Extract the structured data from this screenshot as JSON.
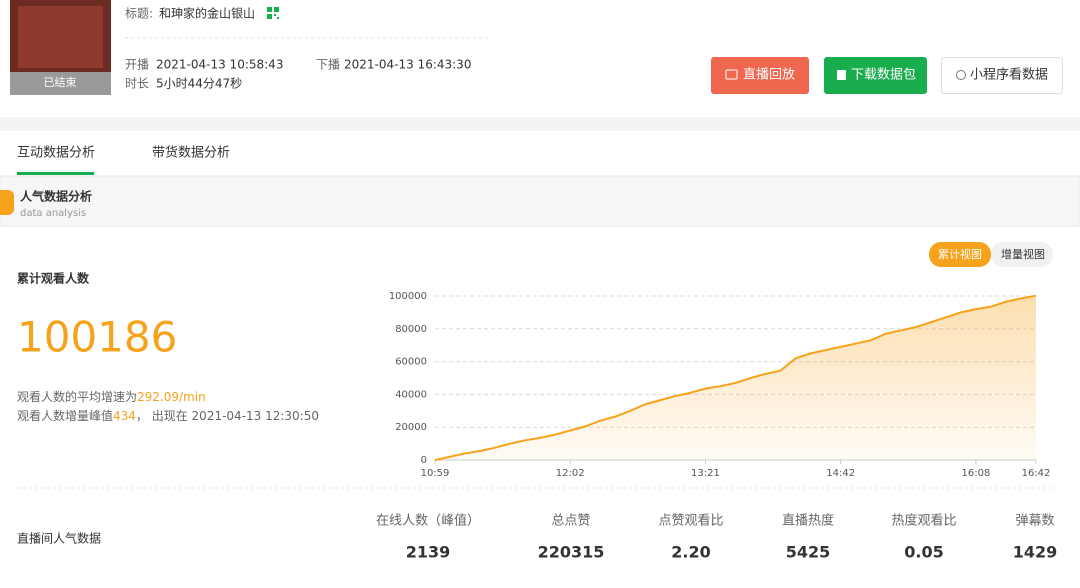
{
  "header": {
    "status": "已结束",
    "title_label": "标题:",
    "title": "和珅家的金山银山",
    "start_label": "开播",
    "start": "2021-04-13 10:58:43",
    "end_label": "下播",
    "end": "2021-04-13 16:43:30",
    "duration_label": "时长",
    "duration": "5小时44分47秒",
    "buttons": [
      "直播回放",
      "下载数据包",
      "小程序看数据"
    ]
  },
  "tabs": [
    "互动数据分析",
    "带货数据分析"
  ],
  "section": {
    "title": "人气数据分析",
    "subtitle": "data analysis"
  },
  "summary": {
    "label": "累计观看人数",
    "total": "100186",
    "speed_text": "观看人数的平均增速为",
    "speed": "292.09/min",
    "peak_text": "观看人数增量峰值",
    "peak": "434",
    "peak_time_text": "， 出现在 2021-04-13 12:30:50"
  },
  "view_toggle": [
    "累计视图",
    "增量视图"
  ],
  "chart_data": {
    "type": "area",
    "categories": [
      "10:59",
      null,
      null,
      null,
      null,
      null,
      null,
      null,
      null,
      "12:02",
      null,
      null,
      null,
      null,
      null,
      null,
      null,
      null,
      "13:21",
      null,
      null,
      null,
      null,
      null,
      null,
      null,
      null,
      "14:42",
      null,
      null,
      null,
      null,
      null,
      null,
      null,
      null,
      "16:08",
      null,
      null,
      null,
      "16:42"
    ],
    "values": [
      0,
      2000,
      4000,
      5500,
      7500,
      10000,
      12000,
      13500,
      15500,
      18000,
      20500,
      24000,
      26500,
      30000,
      34000,
      36500,
      39000,
      41000,
      43500,
      45000,
      47000,
      50000,
      52500,
      54500,
      62000,
      65000,
      67000,
      69000,
      71000,
      73000,
      77000,
      79000,
      81000,
      84000,
      87000,
      90000,
      92000,
      93500,
      96500,
      98500,
      100186
    ],
    "color": "#f7a21b",
    "ylim": [
      0,
      100000
    ],
    "yticks": [
      0,
      20000,
      40000,
      60000,
      80000,
      100000
    ],
    "grid": true
  },
  "stats": {
    "label": "直播间人气数据",
    "columns": [
      {
        "name": "在线人数（峰值）",
        "value": "2139"
      },
      {
        "name": "总点赞",
        "value": "220315"
      },
      {
        "name": "点赞观看比",
        "value": "2.20"
      },
      {
        "name": "直播热度",
        "value": "5425"
      },
      {
        "name": "热度观看比",
        "value": "0.05"
      },
      {
        "name": "弹幕数",
        "value": "1429"
      }
    ]
  }
}
